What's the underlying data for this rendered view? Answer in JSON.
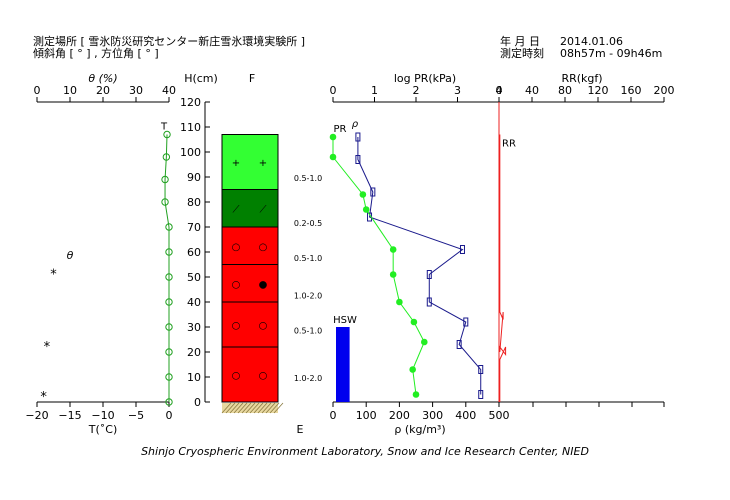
{
  "header": {
    "location_label": "測定場所 [ 雪氷防災研究センター新庄雪氷環境実験所 ]",
    "angle_label": "傾斜角 [ ° ] , 方位角 [ ° ]",
    "date_label": "年 月 日",
    "date_value": "2014.01.06",
    "time_label": "測定時刻",
    "time_value": "08h57m - 09h46m"
  },
  "footer": "Shinjo Cryospheric Environment Laboratory, Snow and Ice Research Center, NIED",
  "chart_data": {
    "type": "snow-pit-profile",
    "colors": {
      "theta_temp": "#20a020",
      "pr": "#22ee22",
      "density": "#1a1a8c",
      "rr": "#ee2020",
      "hsw": "#0000ee"
    },
    "height_axis": {
      "label": "H(cm)",
      "range": [
        0,
        120
      ],
      "ticks": [
        0,
        10,
        20,
        30,
        40,
        50,
        60,
        70,
        80,
        90,
        100,
        110,
        120
      ]
    },
    "theta_axis": {
      "label": "θ (%)",
      "range": [
        0,
        40
      ],
      "ticks": [
        0,
        10,
        20,
        30,
        40
      ]
    },
    "temp_axis": {
      "label": "T(˚C)",
      "range": [
        -20,
        0
      ],
      "ticks": [
        -20,
        -15,
        -10,
        -5,
        0
      ]
    },
    "pr_axis": {
      "label": "log PR(kPa)",
      "range": [
        0,
        4
      ],
      "ticks": [
        0,
        1,
        2,
        3,
        4
      ]
    },
    "density_axis": {
      "label": "ρ (kg/m³)",
      "range": [
        0,
        500
      ],
      "ticks": [
        0,
        100,
        200,
        300,
        400,
        500
      ]
    },
    "rr_axis": {
      "label": "RR(kgf)",
      "range": [
        0,
        200
      ],
      "ticks": [
        0,
        40,
        80,
        120,
        160,
        200
      ]
    },
    "layer_column_top_label": "F",
    "layer_column_bottom_label": "E",
    "temperature_series": {
      "name": "T",
      "points": [
        [
          107,
          -0.3
        ],
        [
          98,
          -0.4
        ],
        [
          89,
          -0.6
        ],
        [
          80,
          -0.6
        ],
        [
          70,
          0
        ],
        [
          60,
          0
        ],
        [
          50,
          0
        ],
        [
          40,
          0
        ],
        [
          30,
          0
        ],
        [
          20,
          0
        ],
        [
          10,
          0
        ],
        [
          0,
          0
        ]
      ]
    },
    "theta_marker": {
      "label": "θ"
    },
    "theta_points": [
      [
        51,
        5
      ],
      [
        22,
        3
      ],
      [
        2,
        2
      ]
    ],
    "pr_series": {
      "name": "PR",
      "points": [
        [
          106,
          0
        ],
        [
          98,
          0
        ],
        [
          83,
          0.72
        ],
        [
          77,
          0.8
        ],
        [
          61,
          1.45
        ],
        [
          51,
          1.45
        ],
        [
          40,
          1.6
        ],
        [
          32,
          1.95
        ],
        [
          24,
          2.2
        ],
        [
          13,
          1.92
        ],
        [
          3,
          2.0
        ]
      ]
    },
    "density_series": {
      "name": "ρ",
      "points": [
        [
          106,
          75
        ],
        [
          97,
          75
        ],
        [
          84,
          120
        ],
        [
          74,
          110
        ],
        [
          61,
          390
        ],
        [
          51,
          290
        ],
        [
          40,
          290
        ],
        [
          32,
          400
        ],
        [
          23,
          380
        ],
        [
          13,
          445
        ],
        [
          3,
          445
        ]
      ]
    },
    "layers": [
      {
        "top": 107,
        "bottom": 85,
        "color": "#33ff33",
        "symbols": [
          "+",
          "+"
        ],
        "hardness": "0.5-1.0"
      },
      {
        "top": 85,
        "bottom": 70,
        "color": "#008000",
        "symbols": [
          "⟋",
          "⟋"
        ],
        "hardness": "0.2-0.5"
      },
      {
        "top": 70,
        "bottom": 55,
        "color": "#ff0000",
        "symbols": [
          "○",
          "○"
        ],
        "hardness": "0.5-1.0"
      },
      {
        "top": 55,
        "bottom": 40,
        "color": "#ff0000",
        "symbols": [
          "○",
          "●"
        ],
        "hardness": "1.0-2.0"
      },
      {
        "top": 40,
        "bottom": 22,
        "color": "#ff0000",
        "symbols": [
          "○",
          "○"
        ],
        "hardness": "0.5-1.0"
      },
      {
        "top": 22,
        "bottom": 0,
        "color": "#ff0000",
        "symbols": [
          "○",
          "○"
        ],
        "hardness": "1.0-2.0"
      }
    ],
    "hardness_label_heights": [
      90,
      72,
      58,
      43,
      29,
      10
    ],
    "hsw": {
      "label": "HSW",
      "value_cm": 30,
      "width_kgm3": 50
    },
    "rr": {
      "label": "RR",
      "steps": [
        [
          107,
          1
        ],
        [
          36,
          1
        ],
        [
          33,
          5
        ],
        [
          36,
          5
        ],
        [
          20,
          1
        ],
        [
          22,
          1
        ],
        [
          19,
          8
        ],
        [
          22,
          8
        ],
        [
          17,
          1
        ],
        [
          0,
          1
        ]
      ]
    }
  }
}
